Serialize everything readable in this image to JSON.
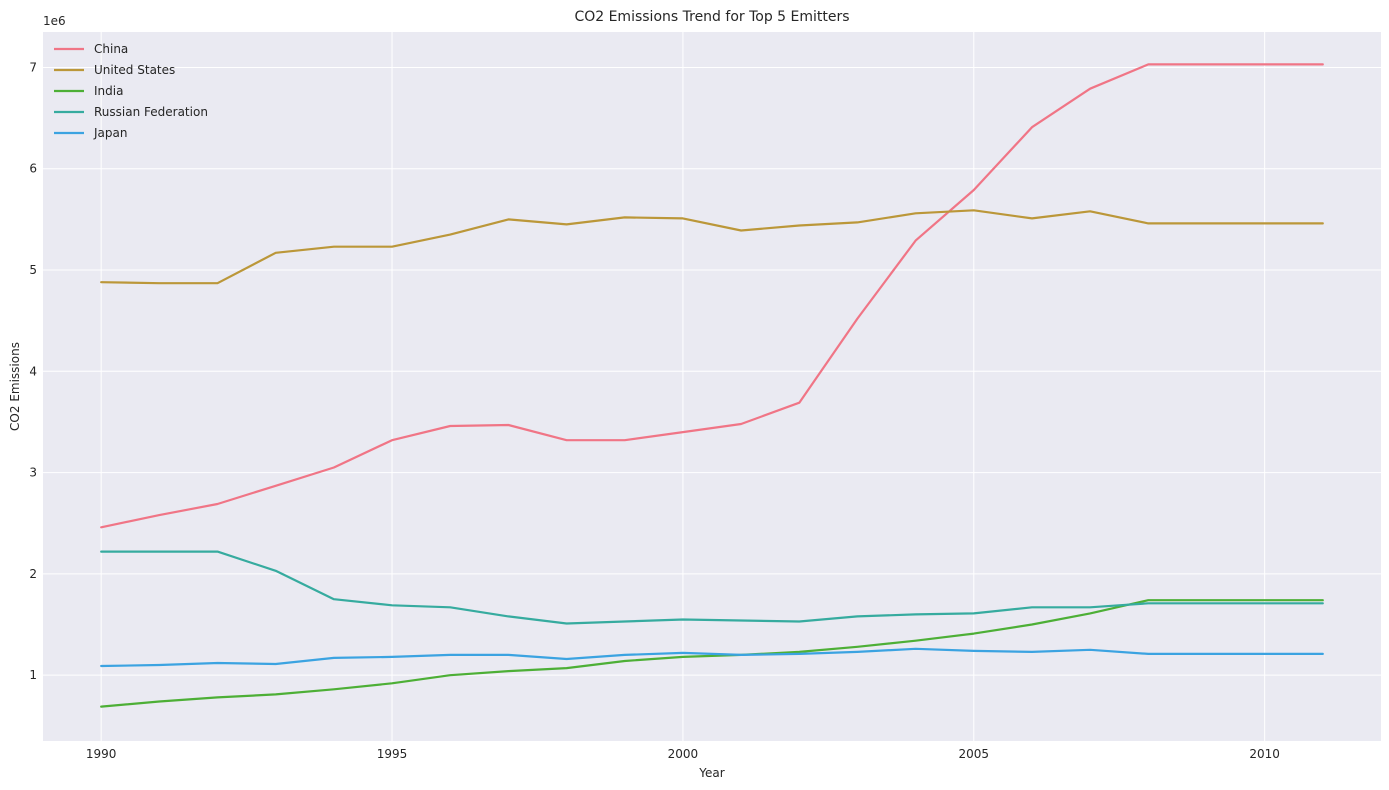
{
  "chart_data": {
    "type": "line",
    "title": "CO2 Emissions Trend for Top 5 Emitters",
    "xlabel": "Year",
    "ylabel": "CO2 Emissions",
    "y_offset_label": "1e6",
    "xlim": [
      1989.0,
      2012.0
    ],
    "ylim": [
      0.35,
      7.35
    ],
    "x_ticks": [
      1990,
      1995,
      2000,
      2005,
      2010
    ],
    "y_ticks": [
      1,
      2,
      3,
      4,
      5,
      6,
      7
    ],
    "grid": true,
    "legend_position": "top-left",
    "background_color": "#eaeaf2",
    "x": [
      1990,
      1991,
      1992,
      1993,
      1994,
      1995,
      1996,
      1997,
      1998,
      1999,
      2000,
      2001,
      2002,
      2003,
      2004,
      2005,
      2006,
      2007,
      2008,
      2009,
      2010,
      2011
    ],
    "series": [
      {
        "name": "China",
        "color": "#f07586",
        "values": [
          2.46,
          2.58,
          2.69,
          2.87,
          3.05,
          3.32,
          3.46,
          3.47,
          3.32,
          3.32,
          3.4,
          3.48,
          3.69,
          4.52,
          5.29,
          5.79,
          6.41,
          6.79,
          7.03,
          7.03,
          7.03,
          7.03
        ]
      },
      {
        "name": "United States",
        "color": "#bb9739",
        "values": [
          4.88,
          4.87,
          4.87,
          5.17,
          5.23,
          5.23,
          5.35,
          5.5,
          5.45,
          5.52,
          5.51,
          5.39,
          5.44,
          5.47,
          5.56,
          5.59,
          5.51,
          5.58,
          5.46,
          5.46,
          5.46,
          5.46
        ]
      },
      {
        "name": "India",
        "color": "#4daf36",
        "values": [
          0.69,
          0.74,
          0.78,
          0.81,
          0.86,
          0.92,
          1.0,
          1.04,
          1.07,
          1.14,
          1.18,
          1.2,
          1.23,
          1.28,
          1.34,
          1.41,
          1.5,
          1.61,
          1.74,
          1.74,
          1.74,
          1.74
        ]
      },
      {
        "name": "Russian Federation",
        "color": "#36ab9f",
        "values": [
          2.22,
          2.22,
          2.22,
          2.03,
          1.75,
          1.69,
          1.67,
          1.58,
          1.51,
          1.53,
          1.55,
          1.54,
          1.53,
          1.58,
          1.6,
          1.61,
          1.67,
          1.67,
          1.71,
          1.71,
          1.71,
          1.71
        ]
      },
      {
        "name": "Japan",
        "color": "#3ba3e1",
        "values": [
          1.09,
          1.1,
          1.12,
          1.11,
          1.17,
          1.18,
          1.2,
          1.2,
          1.16,
          1.2,
          1.22,
          1.2,
          1.21,
          1.23,
          1.26,
          1.24,
          1.23,
          1.25,
          1.21,
          1.21,
          1.21,
          1.21
        ]
      }
    ]
  }
}
